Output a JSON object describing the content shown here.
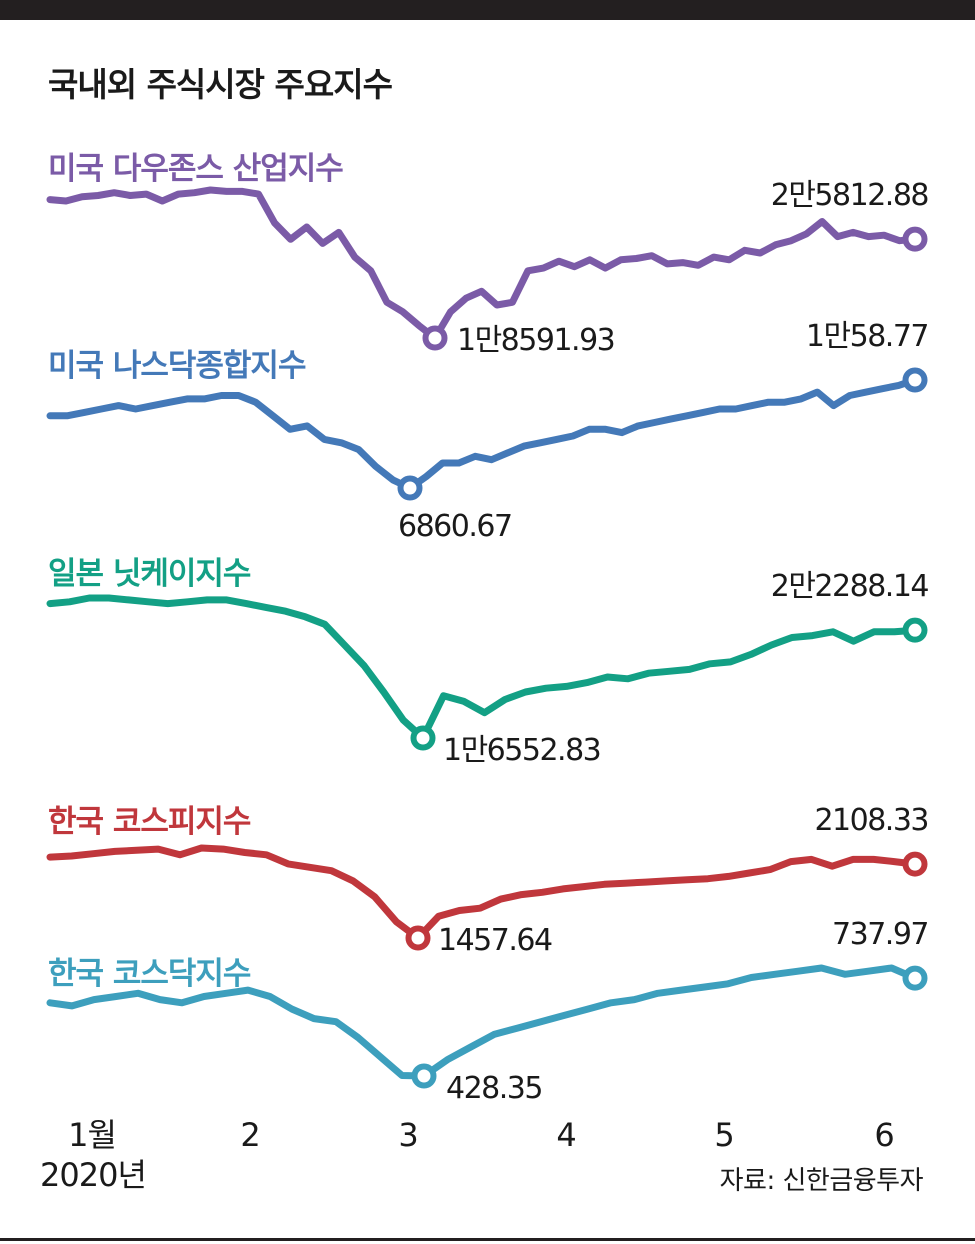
{
  "title": "국내외 주식시장 주요지수",
  "source": "자료: 신한금융투자",
  "chart_data": {
    "type": "line",
    "title": "국내외 주식시장 주요지수",
    "x_ticks": [
      "1월",
      "2",
      "3",
      "4",
      "5",
      "6"
    ],
    "x_tick_sublabel": "2020년",
    "grid": false,
    "legend": "series names above each line",
    "series": [
      {
        "name": "미국 다우존스 산업지수",
        "color": "#7b5ba7",
        "values": [
          28700,
          28600,
          28900,
          29000,
          29200,
          29000,
          29100,
          28600,
          29100,
          29200,
          29400,
          29300,
          29300,
          29100,
          27000,
          25800,
          26700,
          25500,
          26300,
          24500,
          23500,
          21200,
          20500,
          19500,
          18591.93,
          20500,
          21500,
          22000,
          21000,
          21200,
          23500,
          23700,
          24200,
          23800,
          24300,
          23700,
          24300,
          24400,
          24600,
          24000,
          24100,
          23900,
          24500,
          24300,
          25000,
          24800,
          25400,
          25700,
          26200,
          27100,
          26000,
          26300,
          26000,
          26100,
          25700,
          25812.88
        ],
        "min": {
          "value": 18591.93,
          "label": "1만8591.93"
        },
        "last": {
          "value": 25812.88,
          "label": "2만5812.88"
        }
      },
      {
        "name": "미국 나스닥종합지수",
        "color": "#4479b8",
        "values": [
          9000,
          9000,
          9100,
          9200,
          9300,
          9200,
          9300,
          9400,
          9500,
          9500,
          9600,
          9600,
          9400,
          9000,
          8600,
          8700,
          8300,
          8200,
          8000,
          7500,
          7100,
          6860.67,
          7200,
          7600,
          7600,
          7800,
          7700,
          7900,
          8100,
          8200,
          8300,
          8400,
          8600,
          8600,
          8500,
          8700,
          8800,
          8900,
          9000,
          9100,
          9200,
          9200,
          9300,
          9400,
          9400,
          9500,
          9700,
          9300,
          9600,
          9700,
          9800,
          9900,
          10058.77
        ],
        "min": {
          "value": 6860.67,
          "label": "6860.67"
        },
        "last": {
          "value": 10058.77,
          "label": "1만58.77"
        }
      },
      {
        "name": "일본 닛케이지수",
        "color": "#13a085",
        "values": [
          23700,
          23800,
          24000,
          24000,
          23900,
          23800,
          23700,
          23800,
          23900,
          23900,
          23700,
          23500,
          23300,
          23000,
          22600,
          21500,
          20400,
          19000,
          17500,
          16552.83,
          18800,
          18500,
          17900,
          18600,
          19000,
          19200,
          19300,
          19500,
          19800,
          19700,
          20000,
          20100,
          20200,
          20500,
          20600,
          21000,
          21500,
          21900,
          22000,
          22200,
          21700,
          22200,
          22200,
          22288.14
        ],
        "min": {
          "value": 16552.83,
          "label": "1만6552.83"
        },
        "last": {
          "value": 22288.14,
          "label": "2만2288.14"
        }
      },
      {
        "name": "한국 코스피지수",
        "color": "#c0373c",
        "values": [
          2170,
          2180,
          2200,
          2220,
          2230,
          2240,
          2190,
          2250,
          2240,
          2210,
          2190,
          2110,
          2080,
          2050,
          1960,
          1820,
          1600,
          1457.64,
          1650,
          1700,
          1720,
          1800,
          1840,
          1860,
          1890,
          1910,
          1930,
          1940,
          1950,
          1960,
          1970,
          1980,
          2000,
          2030,
          2060,
          2130,
          2150,
          2090,
          2150,
          2150,
          2130,
          2108.33
        ],
        "min": {
          "value": 1457.64,
          "label": "1457.64"
        },
        "last": {
          "value": 2108.33,
          "label": "2108.33"
        }
      },
      {
        "name": "한국 코스닥지수",
        "color": "#3d9fbd",
        "values": [
          660,
          650,
          670,
          680,
          690,
          670,
          660,
          680,
          690,
          700,
          680,
          640,
          610,
          600,
          550,
          490,
          430,
          428.35,
          480,
          520,
          560,
          580,
          600,
          620,
          640,
          660,
          670,
          690,
          700,
          710,
          720,
          740,
          750,
          760,
          770,
          750,
          760,
          770,
          737.97
        ],
        "min": {
          "value": 428.35,
          "label": "428.35"
        },
        "last": {
          "value": 737.97,
          "label": "737.97"
        }
      }
    ]
  }
}
